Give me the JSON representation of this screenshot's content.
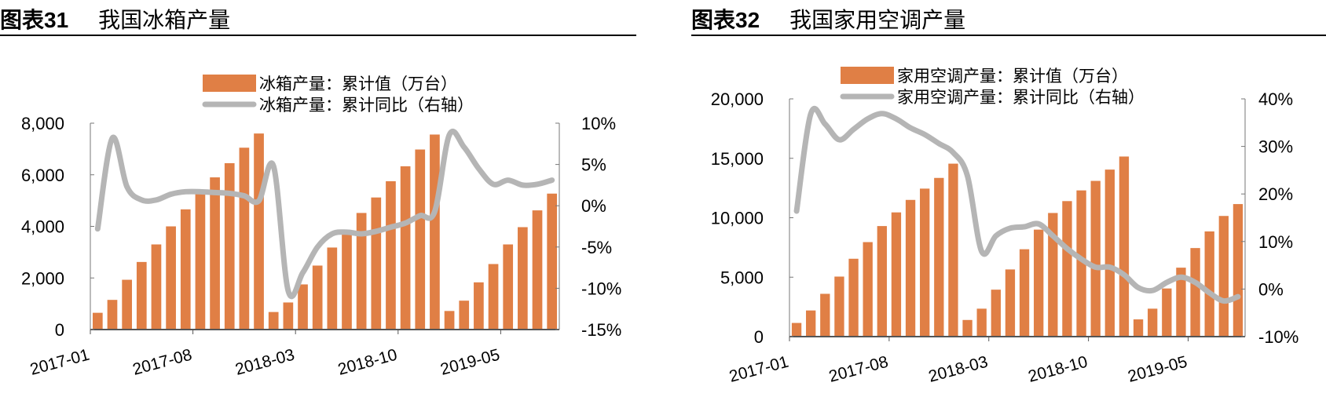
{
  "colors": {
    "bar": "#E07F45",
    "line": "#B5B5B5",
    "axis": "#000000"
  },
  "chart_data": [
    {
      "type": "bar+line",
      "figure_label": "图表31",
      "title": "我国冰箱产量",
      "legend": [
        "冰箱产量：累计值（万台）",
        "冰箱产量：累计同比（右轴）"
      ],
      "legend_placement": "top-center",
      "x_tick_labels": [
        "2017-01",
        "2017-08",
        "2018-03",
        "2018-10",
        "2019-05"
      ],
      "x": [
        "2017-01",
        "2017-02",
        "2017-03",
        "2017-04",
        "2017-05",
        "2017-06",
        "2017-07",
        "2017-08",
        "2017-09",
        "2017-10",
        "2017-11",
        "2017-12",
        "2018-01",
        "2018-02",
        "2018-03",
        "2018-04",
        "2018-05",
        "2018-06",
        "2018-07",
        "2018-08",
        "2018-09",
        "2018-10",
        "2018-11",
        "2018-12",
        "2019-01",
        "2019-02",
        "2019-03",
        "2019-04",
        "2019-05",
        "2019-06",
        "2019-07",
        "2019-08"
      ],
      "left_axis": {
        "ylim": [
          0,
          8000
        ],
        "ticks": [
          "0",
          "2,000",
          "4,000",
          "6,000",
          "8,000"
        ],
        "tick_values": [
          0,
          2000,
          4000,
          6000,
          8000
        ]
      },
      "right_axis": {
        "ylim": [
          -15,
          10
        ],
        "ticks": [
          "-15%",
          "-10%",
          "-5%",
          "0%",
          "5%",
          "10%"
        ],
        "tick_values": [
          -15,
          -10,
          -5,
          0,
          5,
          10
        ]
      },
      "series": [
        {
          "name": "冰箱产量：累计值（万台）",
          "type": "bar",
          "axis": "left",
          "values": [
            650,
            1150,
            1930,
            2620,
            3300,
            4000,
            4660,
            5300,
            5900,
            6450,
            7050,
            7600,
            680,
            1050,
            1750,
            2480,
            3180,
            3800,
            4520,
            5120,
            5750,
            6330,
            6980,
            7560,
            720,
            1120,
            1830,
            2540,
            3300,
            3970,
            4620,
            5270
          ]
        },
        {
          "name": "冰箱产量：累计同比（右轴）",
          "type": "line",
          "axis": "right",
          "values": [
            -2.8,
            8.2,
            2.3,
            0.7,
            0.7,
            1.4,
            1.7,
            1.7,
            1.6,
            1.5,
            1.2,
            0.6,
            4.8,
            -10.3,
            -8.1,
            -5.0,
            -3.4,
            -3.2,
            -3.4,
            -3.1,
            -2.6,
            -2.1,
            -1.2,
            -0.7,
            8.6,
            7.1,
            4.5,
            2.6,
            3.1,
            2.5,
            2.6,
            3.1
          ]
        }
      ]
    },
    {
      "type": "bar+line",
      "figure_label": "图表32",
      "title": "我国家用空调产量",
      "legend": [
        "家用空调产量：累计值（万台）",
        "家用空调产量：累计同比（右轴）"
      ],
      "legend_placement": "top-center",
      "x_tick_labels": [
        "2017-01",
        "2017-08",
        "2018-03",
        "2018-10",
        "2019-05"
      ],
      "x": [
        "2017-01",
        "2017-02",
        "2017-03",
        "2017-04",
        "2017-05",
        "2017-06",
        "2017-07",
        "2017-08",
        "2017-09",
        "2017-10",
        "2017-11",
        "2017-12",
        "2018-01",
        "2018-02",
        "2018-03",
        "2018-04",
        "2018-05",
        "2018-06",
        "2018-07",
        "2018-08",
        "2018-09",
        "2018-10",
        "2018-11",
        "2018-12",
        "2019-01",
        "2019-02",
        "2019-03",
        "2019-04",
        "2019-05",
        "2019-06",
        "2019-07",
        "2019-08"
      ],
      "left_axis": {
        "ylim": [
          0,
          20000
        ],
        "ticks": [
          "0",
          "5,000",
          "10,000",
          "15,000",
          "20,000"
        ],
        "tick_values": [
          0,
          5000,
          10000,
          15000,
          20000
        ]
      },
      "right_axis": {
        "ylim": [
          -10,
          40
        ],
        "ticks": [
          "-10%",
          "0%",
          "10%",
          "20%",
          "30%",
          "40%"
        ],
        "tick_values": [
          -10,
          0,
          10,
          20,
          30,
          40
        ]
      },
      "series": [
        {
          "name": "家用空调产量：累计值（万台）",
          "type": "bar",
          "axis": "left",
          "values": [
            1150,
            2200,
            3600,
            5050,
            6550,
            7950,
            9300,
            10450,
            11500,
            12450,
            13350,
            14550,
            1400,
            2350,
            3950,
            5650,
            7350,
            9000,
            10400,
            11400,
            12300,
            13100,
            14050,
            15150,
            1450,
            2350,
            4050,
            5800,
            7450,
            8850,
            10150,
            11150
          ]
        },
        {
          "name": "家用空调产量：累计同比（右轴）",
          "type": "line",
          "axis": "right",
          "values": [
            16.4,
            36.9,
            34.7,
            31.4,
            33.6,
            35.8,
            36.9,
            35.8,
            33.9,
            32.5,
            30.6,
            28.7,
            23.8,
            7.9,
            11.2,
            12.8,
            13.1,
            13.7,
            11.2,
            8.5,
            6.3,
            4.6,
            4.6,
            3.0,
            0.3,
            -0.3,
            1.4,
            2.5,
            1.4,
            -0.8,
            -2.5,
            -1.6
          ]
        }
      ]
    }
  ]
}
